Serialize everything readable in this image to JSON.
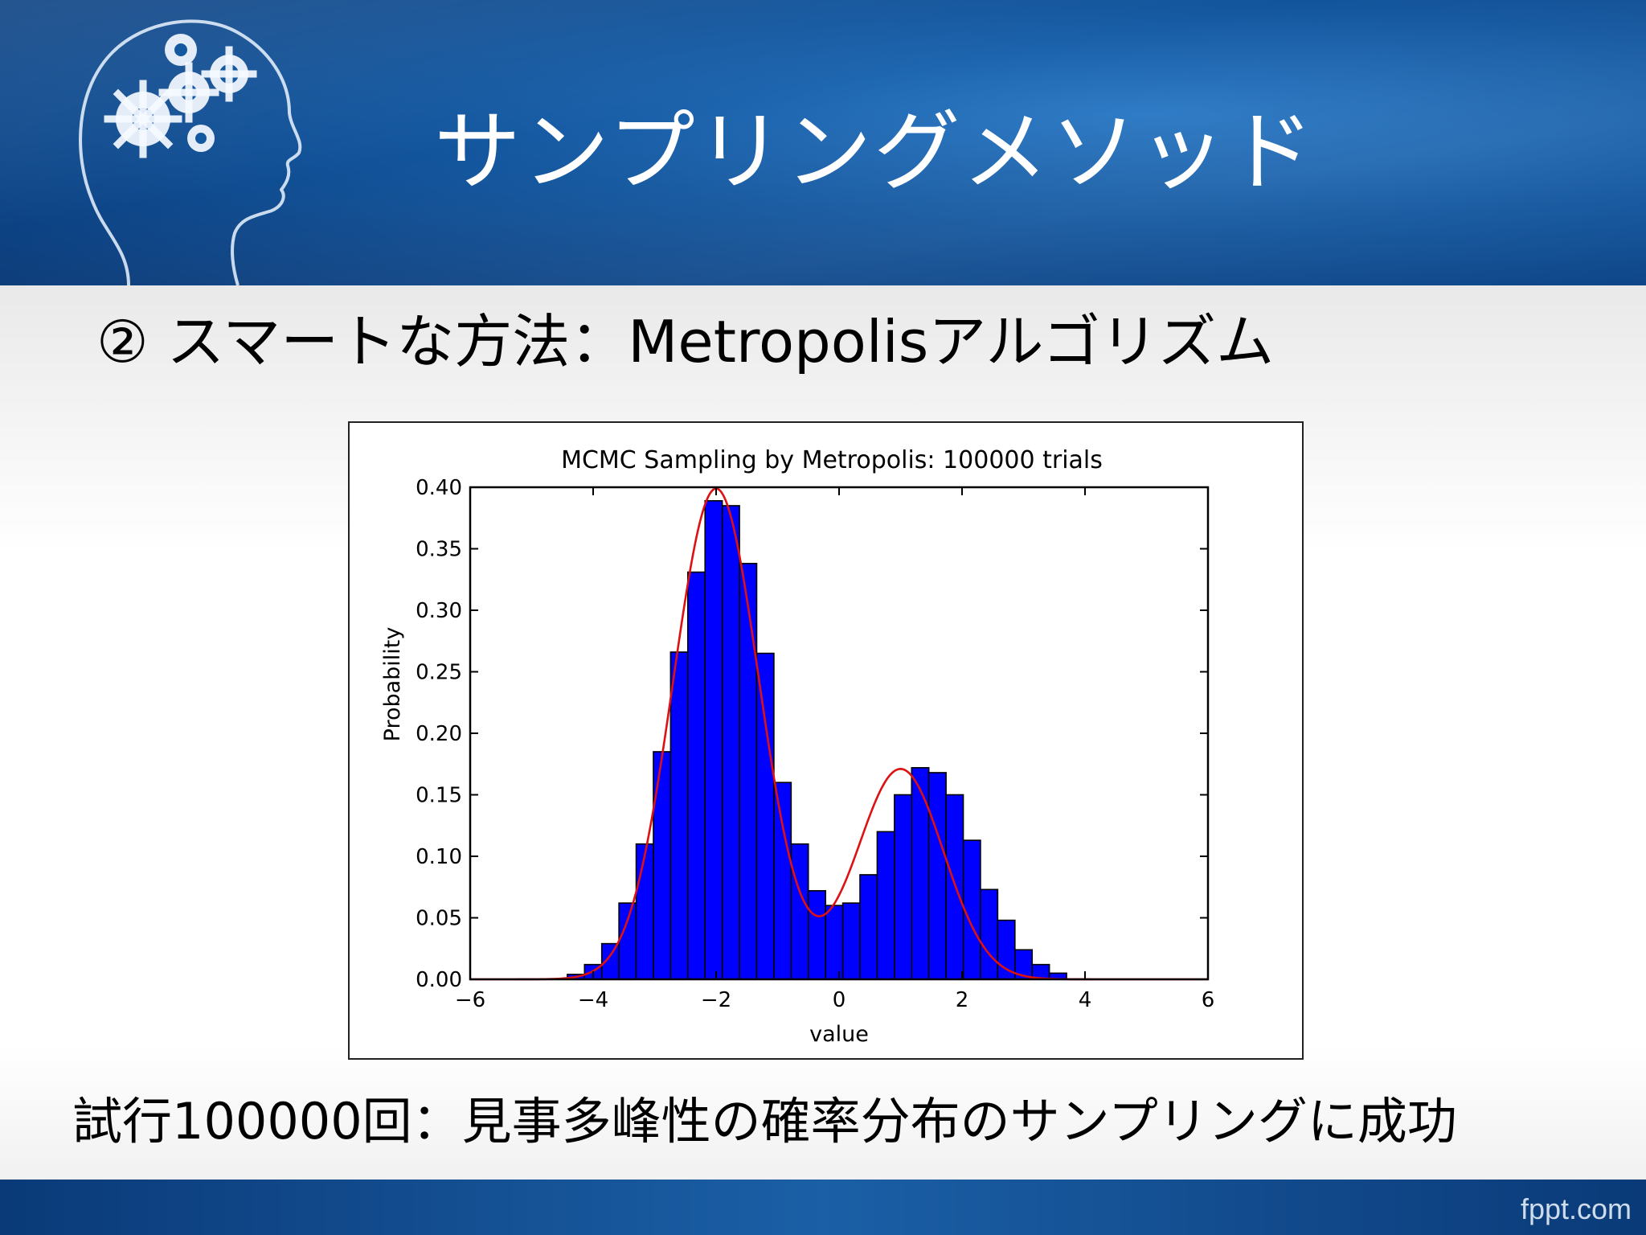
{
  "slide": {
    "title": "サンプリングメソッド",
    "subtitle": "② スマートな方法：Metropolisアルゴリズム",
    "caption": "試行100000回：見事多峰性の確率分布のサンプリングに成功",
    "footer_brand": "fppt.com",
    "head_icon": "head-with-gears-icon",
    "colors": {
      "header_blue": "#13569e",
      "bar_fill": "#0000ff",
      "curve": "#dd1111"
    }
  },
  "chart_data": {
    "type": "bar",
    "title": "MCMC Sampling by Metropolis: 100000 trials",
    "xlabel": "value",
    "ylabel": "Probability",
    "xlim": [
      -6,
      6
    ],
    "ylim": [
      0,
      0.4
    ],
    "x_ticks": [
      -6,
      -4,
      -2,
      0,
      2,
      4,
      6
    ],
    "x_tick_labels": [
      "−6",
      "−4",
      "−2",
      "0",
      "2",
      "4",
      "6"
    ],
    "y_ticks": [
      0,
      0.05,
      0.1,
      0.15,
      0.2,
      0.25,
      0.3,
      0.35,
      0.4
    ],
    "y_tick_labels": [
      "0.00",
      "0.05",
      "0.10",
      "0.15",
      "0.20",
      "0.25",
      "0.30",
      "0.35",
      "0.40"
    ],
    "grid": false,
    "bin_width": 0.28,
    "bin_edges_start": -4.42,
    "histogram_values": [
      0.004,
      0.012,
      0.029,
      0.062,
      0.11,
      0.185,
      0.266,
      0.331,
      0.389,
      0.385,
      0.338,
      0.265,
      0.16,
      0.11,
      0.072,
      0.06,
      0.062,
      0.085,
      0.12,
      0.15,
      0.172,
      0.168,
      0.15,
      0.113,
      0.073,
      0.048,
      0.024,
      0.012,
      0.005
    ],
    "density_curve": {
      "description": "two-component normal mixture",
      "components": [
        {
          "weight": 0.7,
          "mean": -2.0,
          "sd": 0.7
        },
        {
          "weight": 0.3,
          "mean": 1.0,
          "sd": 0.7
        }
      ],
      "peak_values": [
        0.394,
        0.169
      ]
    }
  }
}
